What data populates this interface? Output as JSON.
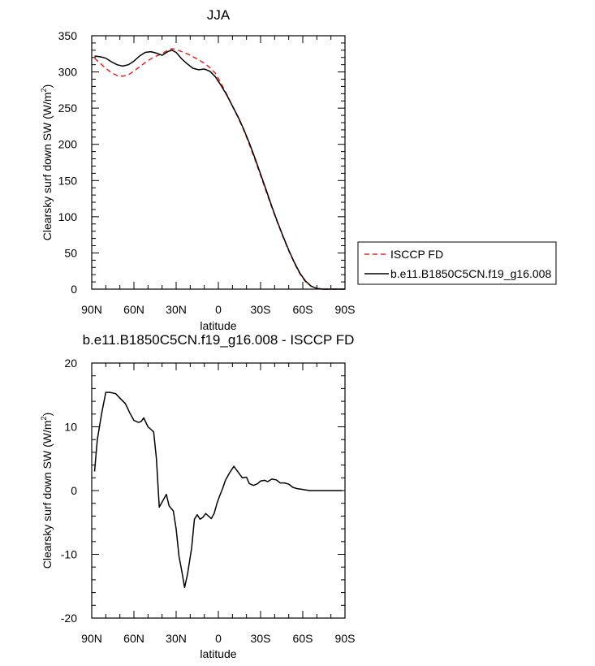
{
  "chart_data": [
    {
      "type": "line",
      "title": "JJA",
      "xlabel": "latitude",
      "ylabel": "Clearsky surf down SW (W/m",
      "ylabel_sup": "2",
      "ylabel_close": ")",
      "xlim": [
        90,
        -90
      ],
      "ylim": [
        0,
        350
      ],
      "xticks": [
        90,
        60,
        30,
        0,
        -30,
        -60,
        -90
      ],
      "xtick_labels": [
        "90N",
        "60N",
        "30N",
        "0",
        "30S",
        "60S",
        "90S"
      ],
      "yticks": [
        0,
        50,
        100,
        150,
        200,
        250,
        300,
        350
      ],
      "ytick_labels": [
        "0",
        "50",
        "100",
        "150",
        "200",
        "250",
        "300",
        "350"
      ],
      "legend": "right",
      "series": [
        {
          "name": "ISCCP FD",
          "color": "#e8231f",
          "dash": "dashed",
          "x": [
            88,
            84,
            80,
            76,
            72,
            68,
            64,
            60,
            56,
            52,
            48,
            44,
            40,
            36,
            33,
            30,
            26,
            22,
            18,
            14,
            10,
            6,
            2,
            0,
            -2,
            -6,
            -10,
            -14,
            -18,
            -22,
            -26,
            -30,
            -34,
            -38,
            -42,
            -46,
            -50,
            -54,
            -58,
            -62,
            -66,
            -70,
            -74,
            -78,
            -82,
            -86,
            -90
          ],
          "y": [
            319,
            312,
            305,
            299,
            295,
            294,
            296,
            301,
            307,
            313,
            318,
            322,
            325,
            330,
            332,
            331,
            328,
            325,
            321,
            317,
            312,
            306,
            298,
            291,
            284,
            269,
            253,
            237,
            220,
            200,
            179,
            157,
            135,
            113,
            92,
            72,
            53,
            36,
            21,
            10,
            4,
            1,
            0,
            0,
            0,
            0,
            0
          ]
        },
        {
          "name": "b.e11.B1850C5CN.f19_g16.008",
          "color": "#000000",
          "dash": "solid",
          "x": [
            88,
            84,
            80,
            76,
            72,
            68,
            64,
            60,
            56,
            52,
            48,
            44,
            40,
            36,
            33,
            30,
            26,
            22,
            18,
            14,
            10,
            6,
            2,
            0,
            -2,
            -6,
            -10,
            -14,
            -18,
            -22,
            -26,
            -30,
            -34,
            -38,
            -42,
            -46,
            -50,
            -54,
            -58,
            -62,
            -66,
            -70,
            -74,
            -78,
            -82,
            -86,
            -90
          ],
          "y": [
            322,
            321,
            319,
            314,
            310,
            308,
            310,
            315,
            322,
            327,
            328,
            326,
            323,
            328,
            330,
            327,
            318,
            311,
            305,
            303,
            304,
            301,
            293,
            287,
            281,
            268,
            253,
            238,
            221,
            202,
            181,
            159,
            137,
            114,
            93,
            73,
            54,
            37,
            22,
            11,
            4,
            1,
            0,
            0,
            0,
            0,
            0
          ]
        }
      ]
    },
    {
      "type": "line",
      "title": "b.e11.B1850C5CN.f19_g16.008 - ISCCP FD",
      "xlabel": "latitude",
      "ylabel": "Clearsky surf down SW (W/m",
      "ylabel_sup": "2",
      "ylabel_close": ")",
      "xlim": [
        90,
        -90
      ],
      "ylim": [
        -20,
        20
      ],
      "xticks": [
        90,
        60,
        30,
        0,
        -30,
        -60,
        -90
      ],
      "xtick_labels": [
        "90N",
        "60N",
        "30N",
        "0",
        "30S",
        "60S",
        "90S"
      ],
      "yticks": [
        -20,
        -10,
        0,
        10,
        20
      ],
      "ytick_labels": [
        "-20",
        "-10",
        "0",
        "10",
        "20"
      ],
      "series": [
        {
          "color": "#000000",
          "dash": "solid",
          "x": [
            88,
            86,
            83,
            80,
            77,
            73,
            70,
            66,
            63,
            60,
            57,
            55,
            53,
            50,
            48,
            46,
            44,
            42,
            40,
            37,
            35,
            32,
            30,
            28,
            26,
            24,
            22,
            19,
            17,
            15,
            13,
            11,
            9,
            7,
            5,
            3,
            1,
            -1,
            -3,
            -5,
            -8,
            -11,
            -14,
            -17,
            -20,
            -22,
            -25,
            -28,
            -30,
            -33,
            -35,
            -38,
            -41,
            -44,
            -47,
            -50,
            -53,
            -56,
            -59,
            -62,
            -65,
            -68,
            -72,
            -76,
            -80,
            -84,
            -88
          ],
          "y": [
            3,
            8,
            12,
            15.4,
            15.4,
            15.2,
            14.5,
            13.6,
            12.2,
            11,
            10.7,
            10.8,
            11.4,
            10,
            9.6,
            9.2,
            5,
            -2.6,
            -1.8,
            -0.6,
            -2.4,
            -3.2,
            -6,
            -10.3,
            -12.6,
            -15.2,
            -13.2,
            -9,
            -4.5,
            -3.8,
            -4.5,
            -4.2,
            -3.6,
            -4,
            -4.4,
            -3.6,
            -2,
            -0.8,
            0.3,
            1.6,
            2.8,
            3.8,
            2.9,
            2,
            2.1,
            1.1,
            0.8,
            1.1,
            1.5,
            1.6,
            1.4,
            1.8,
            1.7,
            1.2,
            1.2,
            1.0,
            0.5,
            0.3,
            0.2,
            0.1,
            0.0,
            0.0,
            0.0,
            0.0,
            0.0,
            0.0,
            0.0
          ]
        }
      ]
    }
  ]
}
